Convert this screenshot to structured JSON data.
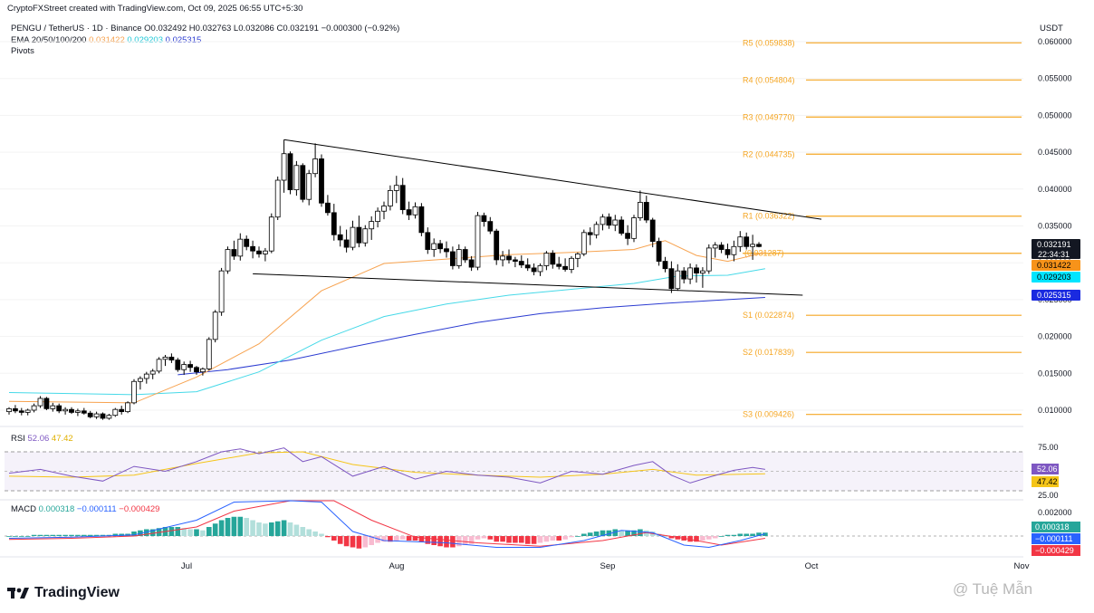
{
  "attribution": "CryptoFXStreet created with TradingView.com, Oct 09, 2025 06:55 UTC+5:30",
  "header": {
    "symbol": "PENGU / TetherUS · 1D · Binance",
    "ohlc": {
      "o": "O0.032492",
      "h": "H0.032763",
      "l": "L0.032086",
      "c": "C0.032191",
      "chg": "−0.000300 (−0.92%)"
    },
    "ema_label": "EMA 20/50/100/200",
    "ema_values": [
      "0.031422",
      "0.029203",
      "0.025315"
    ],
    "pivots_label": "Pivots"
  },
  "currency": "USDT",
  "colors": {
    "up": "#ffffff",
    "down": "#000000",
    "ema_orange": "#f7a350",
    "ema_cyan": "#46d9e8",
    "ema_blue": "#2b3bd1",
    "pivot": "#f5a623",
    "rsi": "#7e57c2",
    "rsi_ma": "#f5c518",
    "macd": "#2962ff",
    "signal": "#f23645",
    "hist_up_strong": "#26a69a",
    "hist_up_weak": "#b2dfdb",
    "hist_dn_strong": "#f23645",
    "hist_dn_weak": "#f8bbd0"
  },
  "price_axis": [
    "0.060000",
    "0.055000",
    "0.050000",
    "0.045000",
    "0.040000",
    "0.035000",
    "0.030000",
    "0.025000",
    "0.020000",
    "0.015000",
    "0.010000"
  ],
  "pivots": [
    {
      "label": "R5 (0.059838)",
      "value": 0.059838
    },
    {
      "label": "R4 (0.054804)",
      "value": 0.054804
    },
    {
      "label": "R3 (0.049770)",
      "value": 0.04977
    },
    {
      "label": "R2 (0.044735)",
      "value": 0.044735
    },
    {
      "label": "R1 (0.036322)",
      "value": 0.036322
    },
    {
      "label": "(0.031287)",
      "value": 0.031287
    },
    {
      "label": "S1 (0.022874)",
      "value": 0.022874
    },
    {
      "label": "S2 (0.017839)",
      "value": 0.017839
    },
    {
      "label": "S3 (0.009426)",
      "value": 0.009426
    }
  ],
  "price_tags": {
    "last": "0.032191",
    "countdown": "22:34:31",
    "ema20": "0.031422",
    "ema50": "0.029203",
    "ema100": "0.025315"
  },
  "rsi": {
    "label": "RSI",
    "value": "52.06",
    "ma": "47.42",
    "axis": [
      "75.00",
      "25.00"
    ]
  },
  "macd": {
    "label": "MACD",
    "values": [
      "0.000318",
      "−0.000111",
      "−0.000429"
    ],
    "axis": [
      "0.002000"
    ],
    "tags": [
      "0.000318",
      "−0.000111",
      "−0.000429"
    ]
  },
  "time_axis": [
    "Jul",
    "Aug",
    "Sep",
    "Oct",
    "Nov"
  ],
  "branding": {
    "logo": "TradingView",
    "watermark": "@ Tuệ Mẫn"
  },
  "chart_data": {
    "type": "candlestick",
    "title": "PENGU / TetherUS · 1D · Binance",
    "ylim": [
      0.007,
      0.061
    ],
    "candles": [
      [
        0.0098,
        0.0104,
        0.0094,
        0.0102
      ],
      [
        0.0102,
        0.0107,
        0.0096,
        0.0099
      ],
      [
        0.0099,
        0.0103,
        0.0093,
        0.0097
      ],
      [
        0.0097,
        0.0102,
        0.0093,
        0.01
      ],
      [
        0.01,
        0.0109,
        0.0097,
        0.0106
      ],
      [
        0.0106,
        0.0119,
        0.0103,
        0.0116
      ],
      [
        0.0116,
        0.0118,
        0.01,
        0.0102
      ],
      [
        0.0102,
        0.011,
        0.0098,
        0.0106
      ],
      [
        0.0106,
        0.0109,
        0.0096,
        0.0099
      ],
      [
        0.0099,
        0.0104,
        0.0094,
        0.0101
      ],
      [
        0.0101,
        0.0104,
        0.0095,
        0.0097
      ],
      [
        0.0097,
        0.0102,
        0.0092,
        0.0099
      ],
      [
        0.0099,
        0.0103,
        0.0094,
        0.0096
      ],
      [
        0.0096,
        0.0099,
        0.0089,
        0.0091
      ],
      [
        0.0091,
        0.0098,
        0.0088,
        0.0095
      ],
      [
        0.0095,
        0.0097,
        0.0087,
        0.0089
      ],
      [
        0.0089,
        0.0095,
        0.0087,
        0.0093
      ],
      [
        0.0093,
        0.0103,
        0.0091,
        0.0101
      ],
      [
        0.0101,
        0.0106,
        0.0094,
        0.0098
      ],
      [
        0.0098,
        0.0112,
        0.0096,
        0.011
      ],
      [
        0.011,
        0.0142,
        0.0108,
        0.0139
      ],
      [
        0.0139,
        0.0146,
        0.0128,
        0.0143
      ],
      [
        0.0143,
        0.0152,
        0.0136,
        0.0149
      ],
      [
        0.0149,
        0.0156,
        0.0142,
        0.0153
      ],
      [
        0.0153,
        0.0172,
        0.015,
        0.0169
      ],
      [
        0.0169,
        0.0175,
        0.016,
        0.0172
      ],
      [
        0.0172,
        0.0177,
        0.0164,
        0.0168
      ],
      [
        0.0168,
        0.0171,
        0.0152,
        0.0155
      ],
      [
        0.0155,
        0.0166,
        0.0148,
        0.0162
      ],
      [
        0.0162,
        0.0167,
        0.0152,
        0.0158
      ],
      [
        0.0158,
        0.016,
        0.0148,
        0.0152
      ],
      [
        0.0152,
        0.0158,
        0.0147,
        0.0156
      ],
      [
        0.0156,
        0.0199,
        0.0154,
        0.0196
      ],
      [
        0.0196,
        0.0236,
        0.0192,
        0.0233
      ],
      [
        0.0233,
        0.0293,
        0.0228,
        0.0289
      ],
      [
        0.0289,
        0.0322,
        0.0285,
        0.0318
      ],
      [
        0.0318,
        0.033,
        0.0304,
        0.0309
      ],
      [
        0.0309,
        0.034,
        0.0303,
        0.0332
      ],
      [
        0.0332,
        0.0337,
        0.0317,
        0.0322
      ],
      [
        0.0322,
        0.033,
        0.0306,
        0.0316
      ],
      [
        0.0316,
        0.0322,
        0.0307,
        0.0312
      ],
      [
        0.0312,
        0.032,
        0.0302,
        0.0316
      ],
      [
        0.0316,
        0.0367,
        0.0313,
        0.0362
      ],
      [
        0.0362,
        0.0417,
        0.0358,
        0.0412
      ],
      [
        0.0412,
        0.0467,
        0.0395,
        0.0448
      ],
      [
        0.0448,
        0.0451,
        0.0393,
        0.0399
      ],
      [
        0.0399,
        0.0438,
        0.0391,
        0.0432
      ],
      [
        0.0432,
        0.0435,
        0.0382,
        0.0386
      ],
      [
        0.0386,
        0.0426,
        0.0378,
        0.0421
      ],
      [
        0.0421,
        0.0462,
        0.0416,
        0.0441
      ],
      [
        0.0441,
        0.0447,
        0.0376,
        0.0381
      ],
      [
        0.0381,
        0.0392,
        0.0364,
        0.0368
      ],
      [
        0.0368,
        0.038,
        0.033,
        0.0338
      ],
      [
        0.0338,
        0.035,
        0.0322,
        0.0331
      ],
      [
        0.0331,
        0.0345,
        0.0314,
        0.0321
      ],
      [
        0.0321,
        0.0357,
        0.0317,
        0.0348
      ],
      [
        0.0348,
        0.0364,
        0.0321,
        0.0327
      ],
      [
        0.0327,
        0.0351,
        0.0322,
        0.0346
      ],
      [
        0.0346,
        0.0363,
        0.0331,
        0.0356
      ],
      [
        0.0356,
        0.0375,
        0.0348,
        0.037
      ],
      [
        0.037,
        0.0383,
        0.0359,
        0.0377
      ],
      [
        0.0377,
        0.0405,
        0.0371,
        0.0398
      ],
      [
        0.0398,
        0.0418,
        0.0381,
        0.0405
      ],
      [
        0.0405,
        0.0415,
        0.0366,
        0.0372
      ],
      [
        0.0372,
        0.0383,
        0.0358,
        0.0365
      ],
      [
        0.0365,
        0.0382,
        0.036,
        0.0376
      ],
      [
        0.0376,
        0.0381,
        0.0336,
        0.0341
      ],
      [
        0.0341,
        0.0348,
        0.0312,
        0.0318
      ],
      [
        0.0318,
        0.0333,
        0.0308,
        0.0326
      ],
      [
        0.0326,
        0.0331,
        0.0313,
        0.0319
      ],
      [
        0.0319,
        0.0329,
        0.0307,
        0.0315
      ],
      [
        0.0315,
        0.0322,
        0.0291,
        0.0296
      ],
      [
        0.0296,
        0.0325,
        0.0292,
        0.0318
      ],
      [
        0.0318,
        0.0322,
        0.03,
        0.0304
      ],
      [
        0.0304,
        0.0309,
        0.0289,
        0.0294
      ],
      [
        0.0294,
        0.0369,
        0.029,
        0.0364
      ],
      [
        0.0364,
        0.0368,
        0.0349,
        0.0356
      ],
      [
        0.0356,
        0.0362,
        0.0339,
        0.0343
      ],
      [
        0.0343,
        0.0346,
        0.0297,
        0.0304
      ],
      [
        0.0304,
        0.0316,
        0.0295,
        0.0309
      ],
      [
        0.0309,
        0.0318,
        0.0299,
        0.0304
      ],
      [
        0.0304,
        0.0308,
        0.0294,
        0.0302
      ],
      [
        0.0302,
        0.031,
        0.0293,
        0.0297
      ],
      [
        0.0297,
        0.0306,
        0.0289,
        0.0293
      ],
      [
        0.0293,
        0.0299,
        0.0283,
        0.0288
      ],
      [
        0.0288,
        0.0299,
        0.0282,
        0.0296
      ],
      [
        0.0296,
        0.0316,
        0.029,
        0.0313
      ],
      [
        0.0313,
        0.0317,
        0.0292,
        0.0298
      ],
      [
        0.0298,
        0.0308,
        0.0291,
        0.0295
      ],
      [
        0.0295,
        0.0306,
        0.0288,
        0.0291
      ],
      [
        0.0291,
        0.0309,
        0.0286,
        0.0306
      ],
      [
        0.0306,
        0.0314,
        0.0294,
        0.0312
      ],
      [
        0.0312,
        0.0345,
        0.0309,
        0.0341
      ],
      [
        0.0341,
        0.0348,
        0.0324,
        0.0338
      ],
      [
        0.0338,
        0.0356,
        0.0333,
        0.0352
      ],
      [
        0.0352,
        0.0366,
        0.0344,
        0.0362
      ],
      [
        0.0362,
        0.0367,
        0.0346,
        0.0351
      ],
      [
        0.0351,
        0.0365,
        0.0343,
        0.0358
      ],
      [
        0.0358,
        0.0363,
        0.0337,
        0.034
      ],
      [
        0.034,
        0.0351,
        0.0324,
        0.0333
      ],
      [
        0.0333,
        0.0365,
        0.0328,
        0.0361
      ],
      [
        0.0361,
        0.0398,
        0.0357,
        0.0382
      ],
      [
        0.0382,
        0.0391,
        0.0354,
        0.0358
      ],
      [
        0.0358,
        0.0361,
        0.0321,
        0.0329
      ],
      [
        0.0329,
        0.0334,
        0.0296,
        0.0302
      ],
      [
        0.0302,
        0.0308,
        0.0287,
        0.0292
      ],
      [
        0.0292,
        0.0302,
        0.0259,
        0.0265
      ],
      [
        0.0265,
        0.0298,
        0.0262,
        0.0289
      ],
      [
        0.0289,
        0.0294,
        0.0272,
        0.0278
      ],
      [
        0.0278,
        0.0299,
        0.0271,
        0.0293
      ],
      [
        0.0293,
        0.0298,
        0.0273,
        0.0286
      ],
      [
        0.0286,
        0.0294,
        0.0266,
        0.0289
      ],
      [
        0.0289,
        0.0325,
        0.0285,
        0.032
      ],
      [
        0.032,
        0.0328,
        0.0307,
        0.0324
      ],
      [
        0.0324,
        0.0328,
        0.0313,
        0.0318
      ],
      [
        0.0318,
        0.0326,
        0.0306,
        0.0311
      ],
      [
        0.0311,
        0.033,
        0.0302,
        0.0322
      ],
      [
        0.0322,
        0.0343,
        0.0315,
        0.0335
      ],
      [
        0.0335,
        0.0341,
        0.0318,
        0.0322
      ],
      [
        0.0322,
        0.0338,
        0.0304,
        0.0325
      ],
      [
        0.0325,
        0.0328,
        0.0321,
        0.0322
      ]
    ],
    "ema20": [
      [
        0,
        0.0112
      ],
      [
        20,
        0.011
      ],
      [
        30,
        0.0145
      ],
      [
        40,
        0.019
      ],
      [
        50,
        0.0262
      ],
      [
        60,
        0.0299
      ],
      [
        70,
        0.0305
      ],
      [
        80,
        0.0311
      ],
      [
        90,
        0.0314
      ],
      [
        100,
        0.0318
      ],
      [
        105,
        0.033
      ],
      [
        110,
        0.031
      ],
      [
        115,
        0.0302
      ],
      [
        121,
        0.0314
      ]
    ],
    "ema50": [
      [
        0,
        0.0124
      ],
      [
        20,
        0.0121
      ],
      [
        30,
        0.0125
      ],
      [
        40,
        0.0152
      ],
      [
        50,
        0.0195
      ],
      [
        60,
        0.0227
      ],
      [
        70,
        0.0244
      ],
      [
        80,
        0.0256
      ],
      [
        90,
        0.0264
      ],
      [
        100,
        0.0272
      ],
      [
        107,
        0.0282
      ],
      [
        115,
        0.0283
      ],
      [
        121,
        0.0292
      ]
    ],
    "ema100": [
      [
        27,
        0.0148
      ],
      [
        35,
        0.0155
      ],
      [
        45,
        0.0168
      ],
      [
        55,
        0.0186
      ],
      [
        65,
        0.0203
      ],
      [
        75,
        0.0219
      ],
      [
        85,
        0.0231
      ],
      [
        95,
        0.0239
      ],
      [
        105,
        0.0245
      ],
      [
        115,
        0.025
      ],
      [
        121,
        0.0253
      ]
    ],
    "trendlines": [
      [
        [
          44,
          0.0467
        ],
        [
          130,
          0.0359
        ]
      ],
      [
        [
          39,
          0.0285
        ],
        [
          127,
          0.0256
        ]
      ]
    ],
    "rsi": [
      [
        0,
        48
      ],
      [
        5,
        52
      ],
      [
        10,
        45
      ],
      [
        15,
        40
      ],
      [
        20,
        55
      ],
      [
        25,
        50
      ],
      [
        30,
        60
      ],
      [
        34,
        70
      ],
      [
        37,
        73
      ],
      [
        40,
        68
      ],
      [
        44,
        74
      ],
      [
        47,
        60
      ],
      [
        50,
        65
      ],
      [
        55,
        45
      ],
      [
        60,
        55
      ],
      [
        65,
        42
      ],
      [
        70,
        50
      ],
      [
        75,
        46
      ],
      [
        80,
        44
      ],
      [
        85,
        38
      ],
      [
        90,
        50
      ],
      [
        95,
        47
      ],
      [
        100,
        56
      ],
      [
        103,
        60
      ],
      [
        106,
        46
      ],
      [
        109,
        38
      ],
      [
        112,
        44
      ],
      [
        116,
        51
      ],
      [
        119,
        54
      ],
      [
        121,
        52
      ]
    ],
    "rsi_ma": [
      [
        0,
        45
      ],
      [
        10,
        44
      ],
      [
        20,
        46
      ],
      [
        30,
        58
      ],
      [
        40,
        69
      ],
      [
        47,
        70
      ],
      [
        55,
        57
      ],
      [
        65,
        49
      ],
      [
        75,
        46
      ],
      [
        85,
        44
      ],
      [
        95,
        47
      ],
      [
        103,
        52
      ],
      [
        110,
        46
      ],
      [
        121,
        47.4
      ]
    ],
    "macd": [
      [
        0,
        -0.0002
      ],
      [
        10,
        -0.0001
      ],
      [
        20,
        0.0001
      ],
      [
        30,
        0.0014
      ],
      [
        36,
        0.003
      ],
      [
        45,
        0.0042
      ],
      [
        50,
        0.003
      ],
      [
        55,
        0.0004
      ],
      [
        60,
        -0.0004
      ],
      [
        70,
        -0.0006
      ],
      [
        78,
        -0.001
      ],
      [
        85,
        -0.001
      ],
      [
        92,
        -0.0004
      ],
      [
        98,
        0.0005
      ],
      [
        103,
        0.0003
      ],
      [
        108,
        -0.0008
      ],
      [
        112,
        -0.001
      ],
      [
        117,
        -0.0004
      ],
      [
        121,
        0.0002
      ]
    ],
    "signal": [
      [
        0,
        -0.0003
      ],
      [
        10,
        -0.0002
      ],
      [
        20,
        0.0
      ],
      [
        30,
        0.0008
      ],
      [
        36,
        0.0022
      ],
      [
        45,
        0.0038
      ],
      [
        52,
        0.0032
      ],
      [
        58,
        0.0014
      ],
      [
        65,
        -0.0001
      ],
      [
        75,
        -0.0006
      ],
      [
        85,
        -0.0009
      ],
      [
        95,
        -0.0004
      ],
      [
        102,
        0.0003
      ],
      [
        108,
        -0.0002
      ],
      [
        114,
        -0.0008
      ],
      [
        121,
        -0.0002
      ]
    ],
    "hist": [
      0,
      0,
      0,
      0,
      0.0001,
      0.0001,
      0.0001,
      0.0001,
      0.0001,
      0.0001,
      0.0001,
      0.0001,
      0.0001,
      0.0001,
      0.0001,
      0.0001,
      0.0001,
      0.0002,
      0.0002,
      0.0002,
      0.0004,
      0.0005,
      0.0006,
      0.0006,
      0.0007,
      0.0008,
      0.0008,
      0.0008,
      0.0007,
      0.0006,
      0.0006,
      0.0005,
      0.0008,
      0.0011,
      0.0014,
      0.0016,
      0.0017,
      0.0017,
      0.0016,
      0.0014,
      0.0012,
      0.0011,
      0.0012,
      0.0013,
      0.0014,
      0.0012,
      0.001,
      0.0008,
      0.0006,
      0.0004,
      0.0002,
      -0.0001,
      -0.0004,
      -0.0007,
      -0.0009,
      -0.001,
      -0.0011,
      -0.001,
      -0.0008,
      -0.0006,
      -0.0005,
      -0.0005,
      -0.0004,
      -0.0003,
      -0.0004,
      -0.0004,
      -0.0005,
      -0.0007,
      -0.0008,
      -0.0009,
      -0.001,
      -0.001,
      -0.0009,
      -0.0008,
      -0.0007,
      -0.0003,
      -0.0002,
      -0.0003,
      -0.0005,
      -0.0005,
      -0.0006,
      -0.0006,
      -0.0006,
      -0.0007,
      -0.0007,
      -0.0006,
      -0.0005,
      -0.0004,
      -0.0004,
      -0.0003,
      -0.0001,
      0,
      0.0002,
      0.0003,
      0.0004,
      0.0005,
      0.0005,
      0.0006,
      0.0005,
      0.0005,
      0.0005,
      0.0006,
      0.0005,
      0.0004,
      0.0002,
      0,
      -0.0002,
      -0.0003,
      -0.0004,
      -0.0005,
      -0.0005,
      -0.0004,
      -0.0003,
      -0.0002,
      0,
      0.0001,
      0.0001,
      0.0002,
      0.0002,
      0.0002,
      0.0003,
      0.0003
    ]
  }
}
